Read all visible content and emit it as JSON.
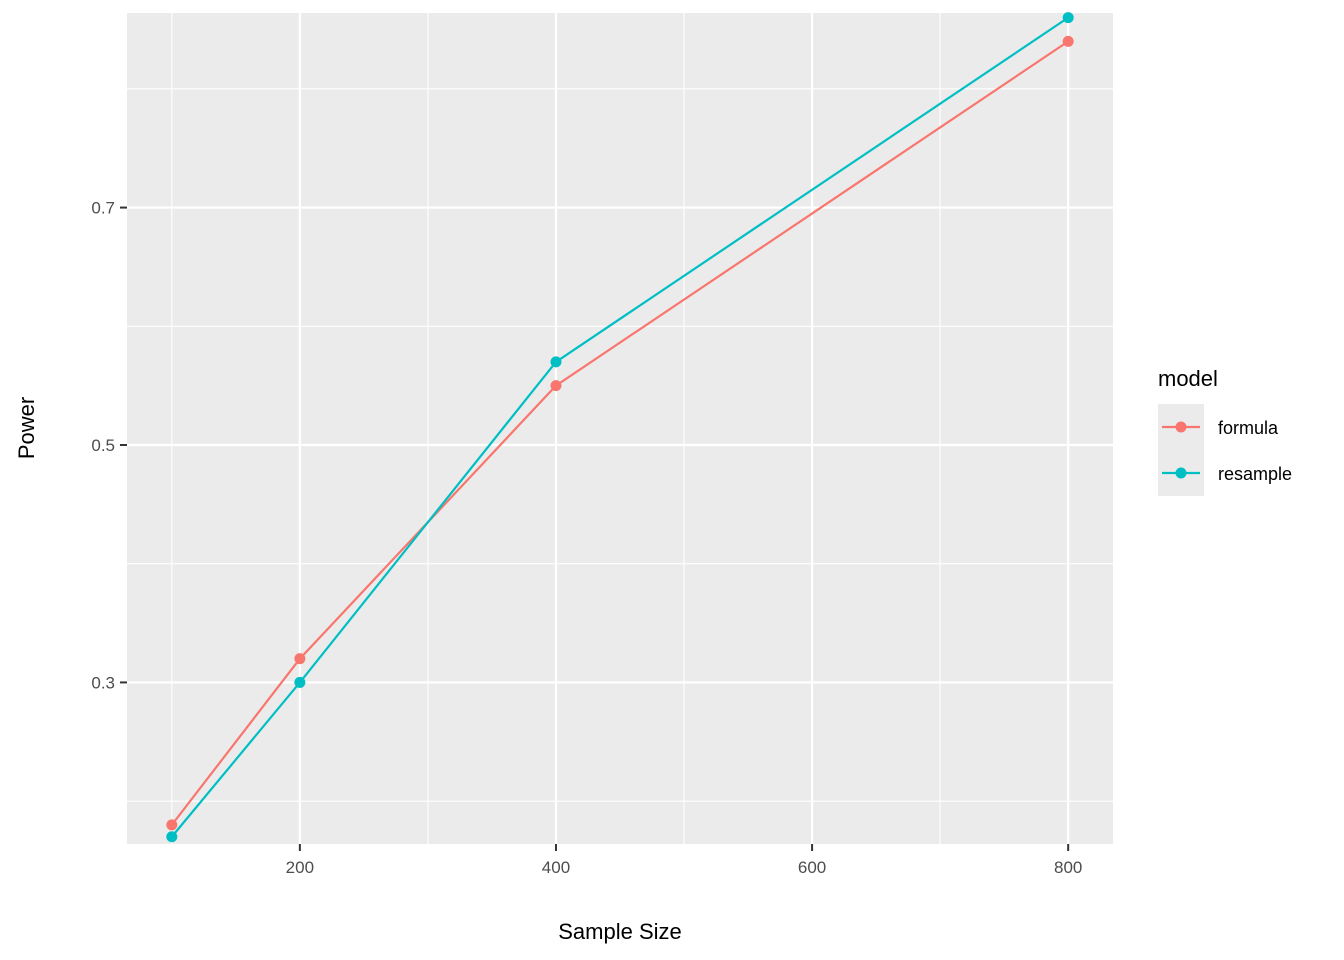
{
  "chart_data": {
    "type": "line",
    "xlabel": "Sample Size",
    "ylabel": "Power",
    "x": [
      100,
      200,
      400,
      800
    ],
    "xlim": [
      65,
      835
    ],
    "ylim": [
      0.1639,
      0.8639
    ],
    "x_major_ticks": [
      200,
      400,
      600,
      800
    ],
    "x_minor_ticks": [
      100,
      300,
      500,
      700
    ],
    "y_major_ticks": [
      0.3,
      0.5,
      0.7
    ],
    "y_minor_ticks": [
      0.2,
      0.4,
      0.6,
      0.8
    ],
    "x_tick_labels": [
      "200",
      "400",
      "600",
      "800"
    ],
    "y_tick_labels": [
      "0.3",
      "0.5",
      "0.7"
    ],
    "grid": true,
    "legend": {
      "title": "model",
      "position": "right"
    },
    "series": [
      {
        "name": "formula",
        "color": "#F8766D",
        "values": [
          0.18,
          0.32,
          0.55,
          0.84
        ]
      },
      {
        "name": "resample",
        "color": "#00BFC4",
        "values": [
          0.17,
          0.3,
          0.57,
          0.86
        ]
      }
    ]
  }
}
